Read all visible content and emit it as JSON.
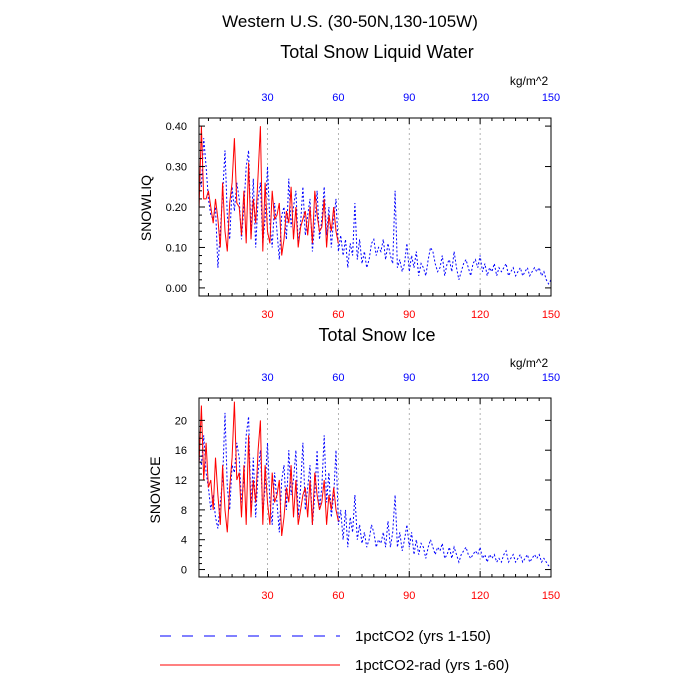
{
  "figure": {
    "title": "Western U.S. (30-50N,130-105W)"
  },
  "colors": {
    "series1": "#0000ff",
    "series2": "#ff0000",
    "axis": "#000000",
    "grid": "#a0a0a0"
  },
  "legend": {
    "placement": "bottom",
    "items": [
      {
        "label": "1pctCO2 (yrs 1-150)",
        "style": "dashed-blue"
      },
      {
        "label": "1pctCO2-rad (yrs 1-60)",
        "style": "solid-red"
      }
    ]
  },
  "chart_data": [
    {
      "type": "line",
      "title": "Total Snow Liquid Water",
      "ylabel": "SNOWLIQ",
      "unit": "kg/m^2",
      "xlim": [
        1,
        150
      ],
      "ylim": [
        -0.02,
        0.42
      ],
      "yticks": [
        0.0,
        0.1,
        0.2,
        0.3,
        0.4
      ],
      "ytick_labels": [
        "0.00",
        "0.10",
        "0.20",
        "0.30",
        "0.40"
      ],
      "xticks": [
        30,
        60,
        90,
        120,
        150
      ],
      "vgrid": [
        30,
        60,
        90,
        120
      ],
      "series": [
        {
          "name": "1pctCO2 (yrs 1-150)",
          "color": "#0000ff",
          "dash": true,
          "x": [
            1,
            2,
            3,
            4,
            5,
            6,
            7,
            8,
            9,
            10,
            11,
            12,
            13,
            14,
            15,
            16,
            17,
            18,
            19,
            20,
            21,
            22,
            23,
            24,
            25,
            26,
            27,
            28,
            29,
            30,
            31,
            32,
            33,
            34,
            35,
            36,
            37,
            38,
            39,
            40,
            41,
            42,
            43,
            44,
            45,
            46,
            47,
            48,
            49,
            50,
            51,
            52,
            53,
            54,
            55,
            56,
            57,
            58,
            59,
            60,
            61,
            62,
            63,
            64,
            65,
            66,
            67,
            68,
            69,
            70,
            71,
            72,
            73,
            74,
            75,
            76,
            77,
            78,
            79,
            80,
            81,
            82,
            83,
            84,
            85,
            86,
            87,
            88,
            89,
            90,
            91,
            92,
            93,
            94,
            95,
            96,
            97,
            98,
            99,
            100,
            101,
            102,
            103,
            104,
            105,
            106,
            107,
            108,
            109,
            110,
            111,
            112,
            113,
            114,
            115,
            116,
            117,
            118,
            119,
            120,
            121,
            122,
            123,
            124,
            125,
            126,
            127,
            128,
            129,
            130,
            131,
            132,
            133,
            134,
            135,
            136,
            137,
            138,
            139,
            140,
            141,
            142,
            143,
            144,
            145,
            146,
            147,
            148,
            149,
            150
          ],
          "y": [
            0.28,
            0.25,
            0.37,
            0.3,
            0.22,
            0.18,
            0.17,
            0.2,
            0.05,
            0.14,
            0.23,
            0.34,
            0.18,
            0.12,
            0.25,
            0.19,
            0.26,
            0.22,
            0.12,
            0.2,
            0.3,
            0.34,
            0.13,
            0.27,
            0.1,
            0.22,
            0.26,
            0.11,
            0.17,
            0.3,
            0.16,
            0.1,
            0.21,
            0.14,
            0.07,
            0.18,
            0.2,
            0.12,
            0.27,
            0.15,
            0.2,
            0.24,
            0.11,
            0.16,
            0.25,
            0.13,
            0.18,
            0.22,
            0.09,
            0.16,
            0.24,
            0.12,
            0.17,
            0.25,
            0.13,
            0.2,
            0.1,
            0.17,
            0.22,
            0.09,
            0.13,
            0.08,
            0.12,
            0.05,
            0.11,
            0.08,
            0.21,
            0.07,
            0.12,
            0.06,
            0.09,
            0.05,
            0.07,
            0.11,
            0.12,
            0.08,
            0.1,
            0.09,
            0.12,
            0.07,
            0.11,
            0.08,
            0.06,
            0.24,
            0.05,
            0.07,
            0.04,
            0.06,
            0.11,
            0.04,
            0.08,
            0.05,
            0.09,
            0.03,
            0.06,
            0.05,
            0.03,
            0.07,
            0.1,
            0.09,
            0.06,
            0.04,
            0.05,
            0.08,
            0.03,
            0.06,
            0.07,
            0.04,
            0.09,
            0.05,
            0.02,
            0.04,
            0.06,
            0.07,
            0.05,
            0.03,
            0.06,
            0.07,
            0.05,
            0.08,
            0.04,
            0.06,
            0.03,
            0.05,
            0.04,
            0.06,
            0.03,
            0.05,
            0.04,
            0.05,
            0.06,
            0.03,
            0.04,
            0.05,
            0.03,
            0.04,
            0.05,
            0.03,
            0.04,
            0.05,
            0.03,
            0.04,
            0.05,
            0.04,
            0.05,
            0.03,
            0.04,
            0.02,
            0.01,
            0.02
          ]
        },
        {
          "name": "1pctCO2-rad (yrs 1-60)",
          "color": "#ff0000",
          "dash": false,
          "x": [
            1,
            2,
            3,
            4,
            5,
            6,
            7,
            8,
            9,
            10,
            11,
            12,
            13,
            14,
            15,
            16,
            17,
            18,
            19,
            20,
            21,
            22,
            23,
            24,
            25,
            26,
            27,
            28,
            29,
            30,
            31,
            32,
            33,
            34,
            35,
            36,
            37,
            38,
            39,
            40,
            41,
            42,
            43,
            44,
            45,
            46,
            47,
            48,
            49,
            50,
            51,
            52,
            53,
            54,
            55,
            56,
            57,
            58,
            59,
            60
          ],
          "y": [
            0.19,
            0.4,
            0.22,
            0.22,
            0.24,
            0.2,
            0.16,
            0.22,
            0.17,
            0.1,
            0.26,
            0.14,
            0.09,
            0.21,
            0.26,
            0.37,
            0.21,
            0.2,
            0.13,
            0.24,
            0.11,
            0.31,
            0.12,
            0.22,
            0.16,
            0.28,
            0.4,
            0.09,
            0.26,
            0.14,
            0.11,
            0.24,
            0.17,
            0.18,
            0.21,
            0.08,
            0.12,
            0.19,
            0.16,
            0.25,
            0.12,
            0.2,
            0.1,
            0.15,
            0.17,
            0.19,
            0.13,
            0.2,
            0.11,
            0.24,
            0.18,
            0.14,
            0.15,
            0.22,
            0.1,
            0.18,
            0.14,
            0.2,
            0.14,
            0.11
          ]
        }
      ]
    },
    {
      "type": "line",
      "title": "Total Snow Ice",
      "ylabel": "SNOWICE",
      "unit": "kg/m^2",
      "xlim": [
        1,
        150
      ],
      "ylim": [
        -1,
        23
      ],
      "yticks": [
        0,
        4,
        8,
        12,
        16,
        20
      ],
      "ytick_labels": [
        "0",
        "4",
        "8",
        "12",
        "16",
        "20"
      ],
      "xticks": [
        30,
        60,
        90,
        120,
        150
      ],
      "vgrid": [
        30,
        60,
        90,
        120
      ],
      "series": [
        {
          "name": "1pctCO2 (yrs 1-150)",
          "color": "#0000ff",
          "dash": true,
          "x": [
            1,
            2,
            3,
            4,
            5,
            6,
            7,
            8,
            9,
            10,
            11,
            12,
            13,
            14,
            15,
            16,
            17,
            18,
            19,
            20,
            21,
            22,
            23,
            24,
            25,
            26,
            27,
            28,
            29,
            30,
            31,
            32,
            33,
            34,
            35,
            36,
            37,
            38,
            39,
            40,
            41,
            42,
            43,
            44,
            45,
            46,
            47,
            48,
            49,
            50,
            51,
            52,
            53,
            54,
            55,
            56,
            57,
            58,
            59,
            60,
            61,
            62,
            63,
            64,
            65,
            66,
            67,
            68,
            69,
            70,
            71,
            72,
            73,
            74,
            75,
            76,
            77,
            78,
            79,
            80,
            81,
            82,
            83,
            84,
            85,
            86,
            87,
            88,
            89,
            90,
            91,
            92,
            93,
            94,
            95,
            96,
            97,
            98,
            99,
            100,
            101,
            102,
            103,
            104,
            105,
            106,
            107,
            108,
            109,
            110,
            111,
            112,
            113,
            114,
            115,
            116,
            117,
            118,
            119,
            120,
            121,
            122,
            123,
            124,
            125,
            126,
            127,
            128,
            129,
            130,
            131,
            132,
            133,
            134,
            135,
            136,
            137,
            138,
            139,
            140,
            141,
            142,
            143,
            144,
            145,
            146,
            147,
            148,
            149,
            150
          ],
          "y": [
            15.0,
            14.0,
            18.0,
            13.0,
            11.0,
            8.0,
            10.0,
            7.0,
            5.5,
            9.0,
            12.0,
            21.0,
            11.0,
            8.0,
            14.0,
            13.0,
            17.0,
            15.0,
            9.0,
            12.0,
            18.0,
            20.5,
            8.0,
            15.0,
            7.0,
            13.0,
            16.0,
            7.5,
            11.0,
            17.0,
            9.0,
            6.0,
            13.0,
            9.0,
            5.0,
            12.0,
            14.0,
            8.0,
            16.0,
            10.0,
            12.0,
            16.0,
            7.0,
            11.0,
            17.0,
            8.0,
            11.0,
            14.0,
            6.0,
            10.0,
            16.0,
            8.0,
            11.0,
            18.0,
            9.0,
            13.0,
            7.0,
            10.0,
            16.0,
            6.0,
            8.0,
            4.0,
            8.0,
            3.0,
            7.0,
            5.0,
            10.0,
            4.0,
            6.0,
            3.5,
            5.0,
            3.0,
            4.0,
            6.0,
            5.0,
            3.0,
            4.0,
            3.5,
            5.0,
            3.0,
            6.5,
            3.0,
            5.0,
            10.0,
            3.0,
            5.0,
            2.5,
            4.0,
            6.0,
            3.0,
            5.0,
            2.0,
            4.0,
            2.0,
            3.5,
            3.0,
            1.5,
            3.0,
            4.0,
            3.0,
            2.0,
            3.0,
            2.5,
            3.5,
            1.5,
            2.0,
            3.0,
            1.5,
            3.0,
            2.0,
            1.0,
            2.0,
            2.5,
            3.0,
            2.0,
            1.5,
            2.0,
            2.5,
            2.0,
            3.0,
            1.5,
            2.0,
            1.0,
            2.0,
            1.5,
            2.0,
            1.0,
            1.5,
            1.0,
            2.0,
            2.5,
            1.0,
            1.5,
            2.0,
            1.0,
            1.5,
            2.0,
            1.0,
            1.5,
            2.0,
            1.0,
            1.5,
            2.0,
            1.5,
            2.0,
            1.0,
            1.5,
            1.0,
            0.5,
            0.5
          ]
        },
        {
          "name": "1pctCO2-rad (yrs 1-60)",
          "color": "#ff0000",
          "dash": false,
          "x": [
            1,
            2,
            3,
            4,
            5,
            6,
            7,
            8,
            9,
            10,
            11,
            12,
            13,
            14,
            15,
            16,
            17,
            18,
            19,
            20,
            21,
            22,
            23,
            24,
            25,
            26,
            27,
            28,
            29,
            30,
            31,
            32,
            33,
            34,
            35,
            36,
            37,
            38,
            39,
            40,
            41,
            42,
            43,
            44,
            45,
            46,
            47,
            48,
            49,
            50,
            51,
            52,
            53,
            54,
            55,
            56,
            57,
            58,
            59,
            60
          ],
          "y": [
            14.0,
            22.0,
            12.0,
            17.0,
            11.0,
            12.0,
            8.0,
            15.0,
            10.0,
            6.0,
            14.0,
            8.0,
            5.0,
            11.0,
            15.0,
            22.5,
            12.0,
            13.0,
            7.0,
            14.0,
            6.0,
            18.0,
            7.0,
            12.0,
            9.0,
            16.0,
            20.0,
            6.0,
            14.0,
            9.0,
            6.0,
            13.0,
            9.0,
            10.0,
            12.0,
            4.5,
            7.0,
            11.0,
            9.0,
            14.0,
            7.0,
            12.0,
            6.0,
            8.0,
            10.0,
            11.0,
            7.0,
            12.0,
            6.0,
            13.0,
            10.0,
            8.0,
            9.0,
            12.0,
            6.0,
            10.0,
            8.0,
            11.0,
            8.0,
            6.5
          ]
        }
      ]
    }
  ]
}
